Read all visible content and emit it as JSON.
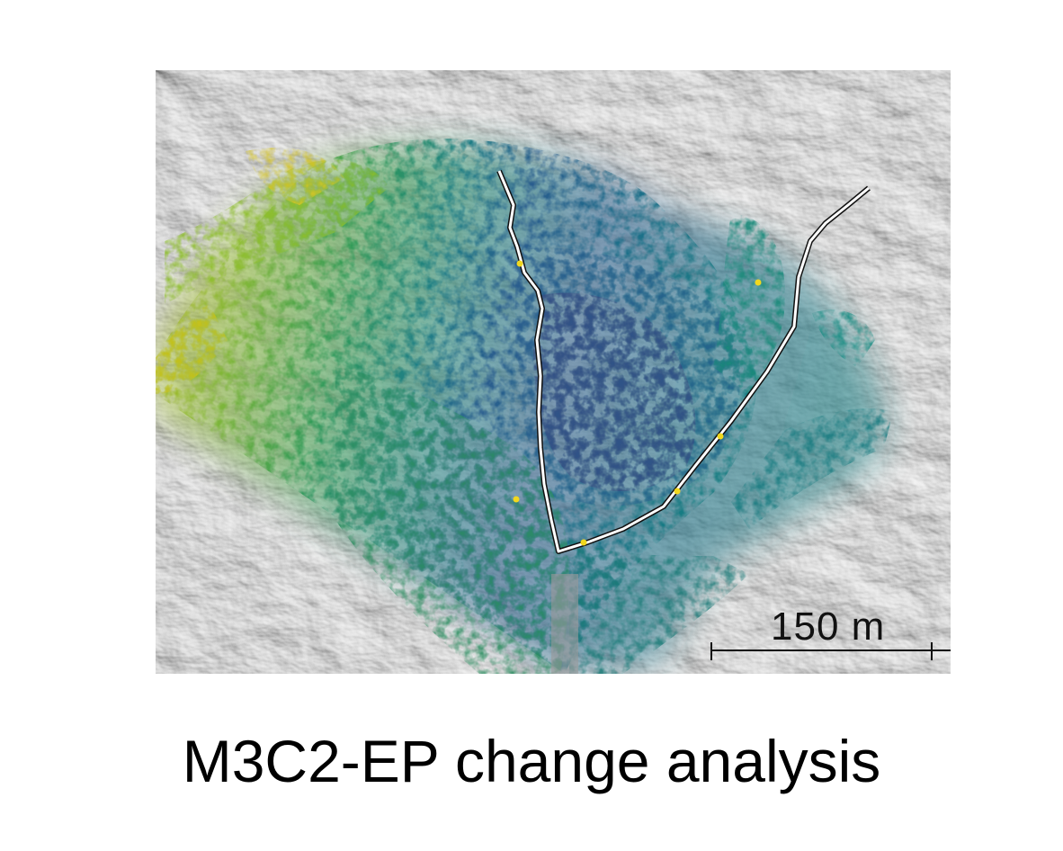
{
  "figure": {
    "scale_bar_label": "150 m",
    "caption": "M3C2-EP change analysis"
  },
  "colors": {
    "hillshade_base": "#bdbdbd",
    "change_yellow": "#c9c21a",
    "change_green": "#2f9a5a",
    "change_teal": "#1f7f86",
    "change_blue": "#2a5d8e",
    "change_purple": "#4a2a6e",
    "profile_line": "#ffffff",
    "marker": "#f2d81e"
  }
}
